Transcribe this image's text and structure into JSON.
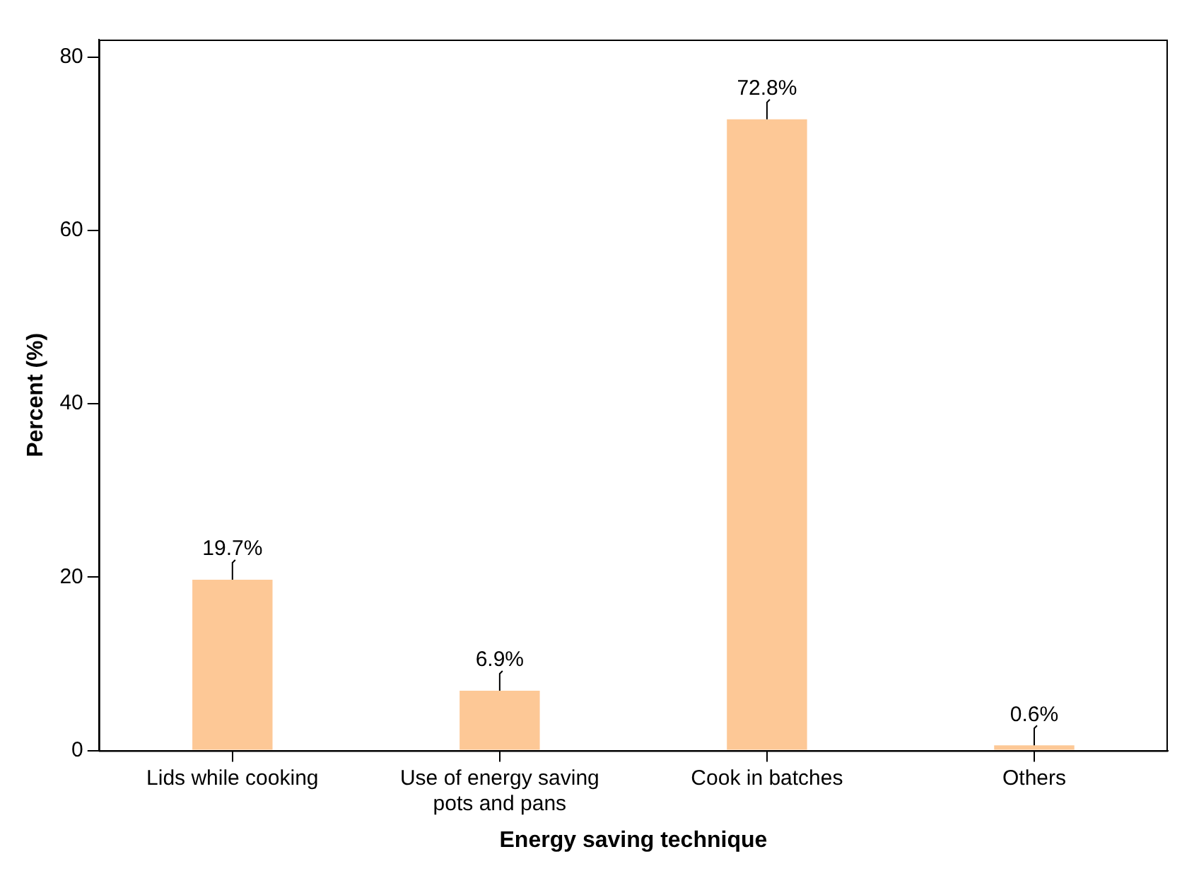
{
  "chart_data": {
    "type": "bar",
    "xlabel": "Energy saving technique",
    "ylabel": "Percent (%)",
    "categories": [
      "Lids while cooking",
      "Use of energy saving pots and pans",
      "Cook in batches",
      "Others"
    ],
    "values": [
      19.7,
      6.9,
      72.8,
      0.6
    ],
    "value_labels": [
      "19.7%",
      "6.9%",
      "72.8%",
      "0.6%"
    ],
    "color": "#fdc896",
    "ylim": [
      0,
      82
    ],
    "yticks": [
      0,
      20,
      40,
      60,
      80
    ],
    "grid": false,
    "legend": false
  }
}
